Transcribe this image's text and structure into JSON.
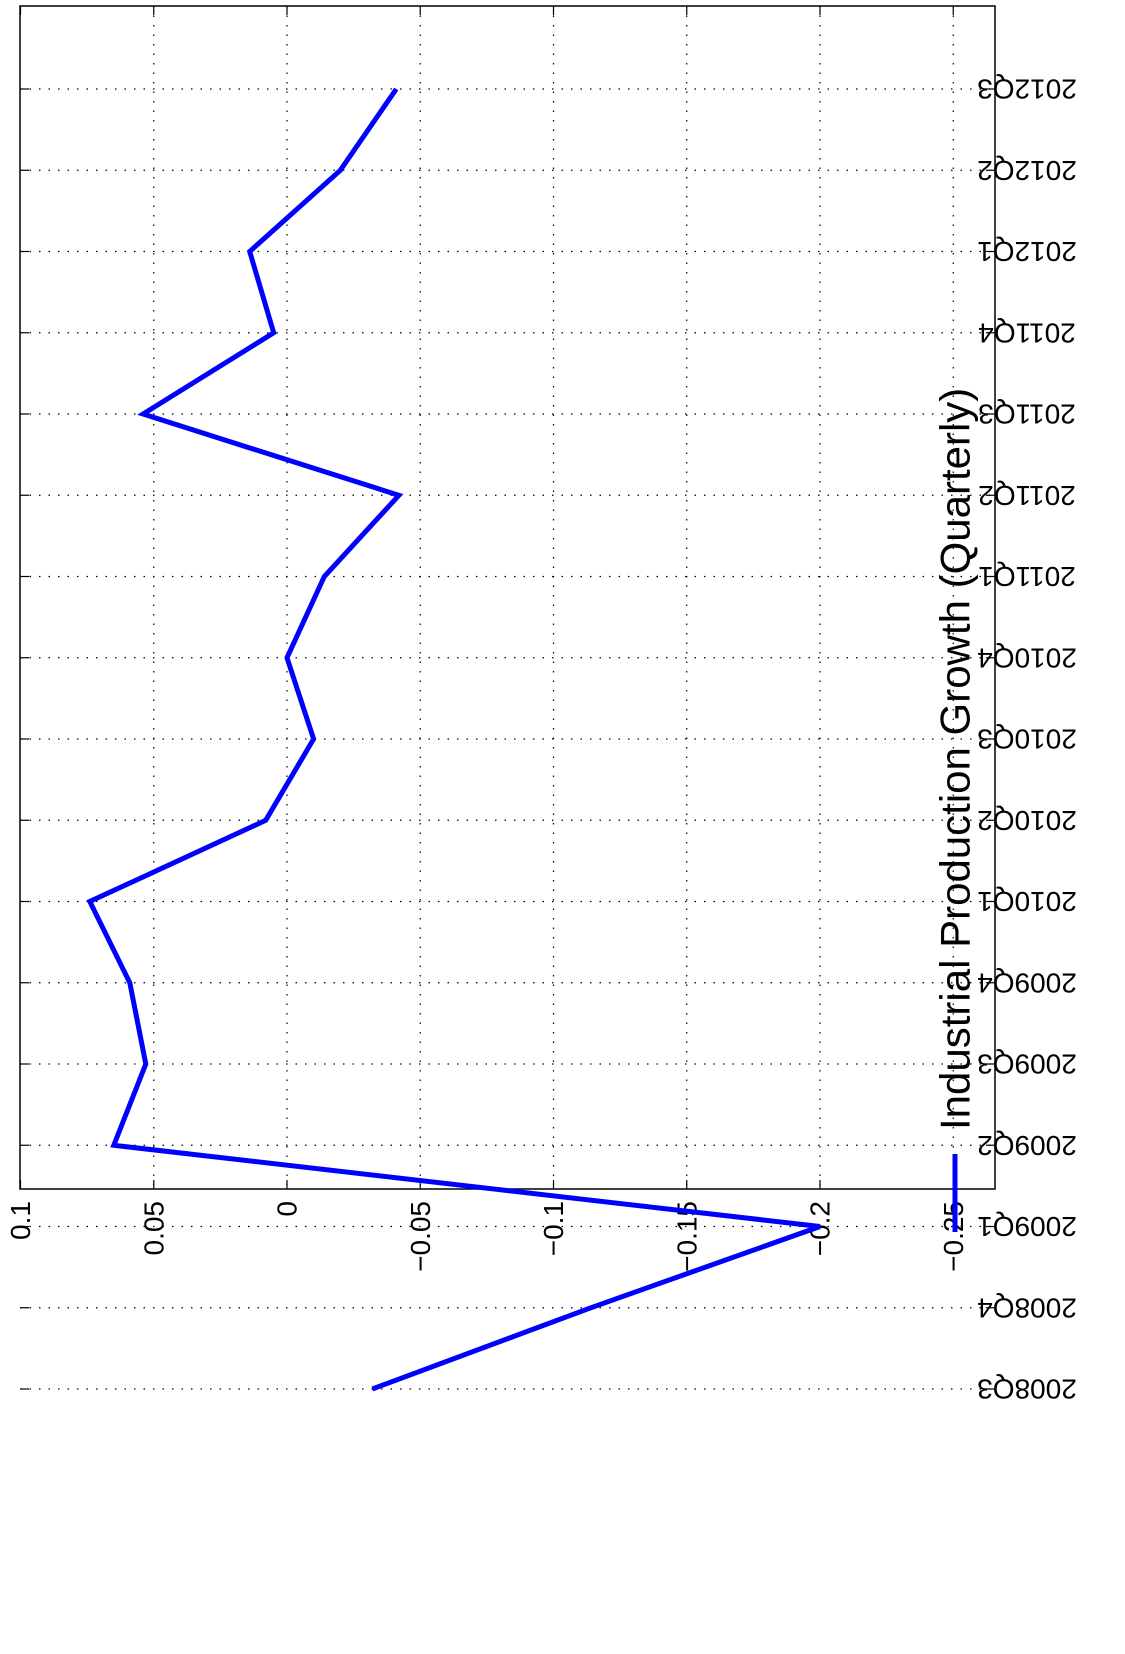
{
  "chart_data": {
    "type": "line",
    "orientation": "rotated-90",
    "categories": [
      "2008Q3",
      "2008Q4",
      "2009Q1",
      "2009Q2",
      "2009Q3",
      "2009Q4",
      "2010Q1",
      "2010Q2",
      "2010Q3",
      "2010Q4",
      "2011Q1",
      "2011Q2",
      "2011Q3",
      "2011Q4",
      "2012Q1",
      "2012Q2",
      "2012Q3"
    ],
    "series": [
      {
        "name": "Industrial Production Growth (Quarterly)",
        "color": "#0000ff",
        "values": [
          -0.032,
          -0.114,
          -0.2,
          0.065,
          0.053,
          0.059,
          0.074,
          0.008,
          -0.01,
          0.0,
          -0.014,
          -0.042,
          0.054,
          0.005,
          0.014,
          -0.02,
          -0.041
        ]
      }
    ],
    "value_ticks": [
      "0.1",
      "0.05",
      "0",
      "−0.05",
      "−0.1",
      "−0.15",
      "−0.2",
      "−0.25"
    ],
    "value_tick_values": [
      0.1,
      0.05,
      0,
      -0.05,
      -0.1,
      -0.15,
      -0.2,
      -0.25
    ],
    "ylim": [
      -0.25,
      0.1
    ],
    "grid": true,
    "grid_style": "dotted",
    "legend_position": "right",
    "title": "",
    "xlabel": "",
    "ylabel": ""
  }
}
